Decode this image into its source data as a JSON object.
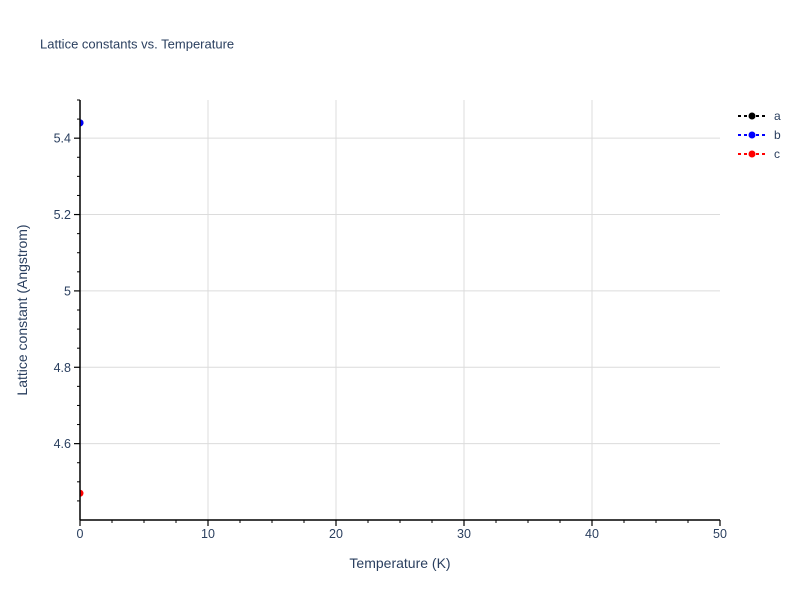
{
  "chart_data": {
    "type": "scatter",
    "title": "Lattice constants vs. Temperature",
    "xlabel": "Temperature (K)",
    "ylabel": "Lattice constant (Angstrom)",
    "xlim": [
      0,
      50
    ],
    "ylim": [
      4.4,
      5.5
    ],
    "x_ticks": [
      0,
      10,
      20,
      30,
      40,
      50
    ],
    "x_tick_labels": [
      "0",
      "10",
      "20",
      "30",
      "40",
      "50"
    ],
    "x_minor_step": 2.5,
    "y_ticks": [
      4.6,
      4.8,
      5.0,
      5.2,
      5.4
    ],
    "y_tick_labels": [
      "4.6",
      "4.8",
      "5",
      "5.2",
      "5.4"
    ],
    "y_minor_step": 0.05,
    "grid": true,
    "legend_position": "top-right",
    "series": [
      {
        "name": "a",
        "color": "#000000",
        "line_style": "dashed",
        "marker": "circle",
        "x": [
          0
        ],
        "y": [
          5.44
        ]
      },
      {
        "name": "b",
        "color": "#0000ff",
        "line_style": "dashed",
        "marker": "circle",
        "x": [
          0
        ],
        "y": [
          5.44
        ]
      },
      {
        "name": "c",
        "color": "#ff0000",
        "line_style": "dashed",
        "marker": "circle",
        "x": [
          0
        ],
        "y": [
          4.47
        ]
      }
    ]
  },
  "colors": {
    "text": "#2a3f5f",
    "axis": "#000000",
    "grid": "#dcdcdc",
    "background": "#ffffff"
  }
}
